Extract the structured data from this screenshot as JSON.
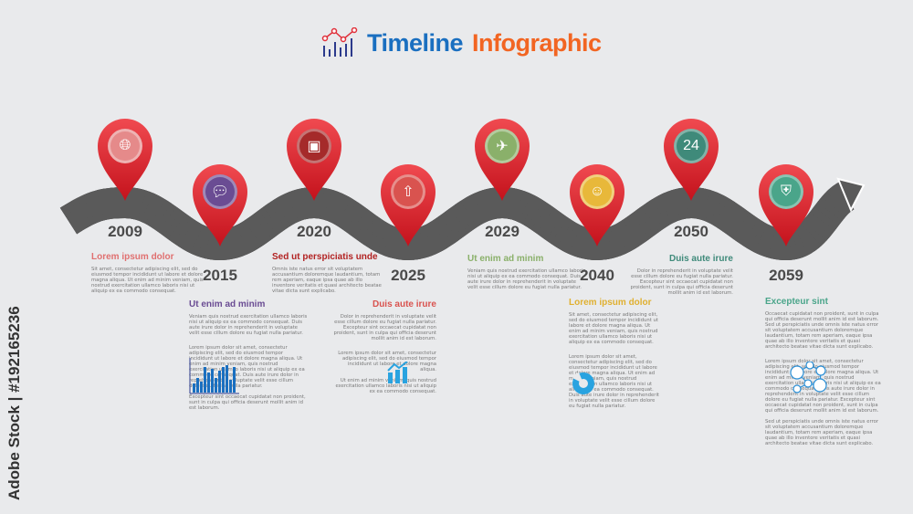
{
  "title": {
    "part1": "Timeline",
    "part2": "Infographic",
    "color1": "#1a6fc0",
    "color2": "#f26522"
  },
  "watermark": "Adobe Stock | #192165236",
  "pin_color": "#e0303a",
  "road_color": "#5a5a5a",
  "milestones": [
    {
      "year": "2009",
      "position": "top",
      "icon": "globe-icon",
      "icon_color": "#e58a8a",
      "heading": "Lorem ipsum dolor",
      "heading_color": "#e07070",
      "text": "Sit amet, consectetur adipiscing elit, sed do eiusmod tempor incididunt ut labore et dolore magna aliqua. Ut enim ad minim veniam, quis nostrud exercitation ullamco laboris nisi ut aliquip ex ea commodo consequat."
    },
    {
      "year": "2015",
      "position": "bottom",
      "icon": "chat-bubbles-icon",
      "icon_color": "#6a4c93",
      "heading": "Ut enim ad minim",
      "heading_color": "#6a4c93",
      "text": "Veniam quis nostrud exercitation ullamco laboris nisi ut aliquip ex ea commodo consequat. Duis aute irure dolor in reprehenderit in voluptate velit esse cillum dolore eu fugiat nulla pariatur.",
      "extra1": "Lorem ipsum dolor sit amet, consectetur adipiscing elit, sed do eiusmod tempor incididunt ut labore et dolore magna aliqua. Ut enim ad minim veniam, quis nostrud exercitation ullamco laboris nisi ut aliquip ex ea commodo consequat. Duis aute irure dolor in reprehenderit in voluptate velit esse cillum dolore eu fugiat nulla pariatur.",
      "extra2": "Excepteur sint occaecat cupidatat non proident, sunt in culpa qui officia deserunt mollit anim id est laborum."
    },
    {
      "year": "2020",
      "position": "top",
      "icon": "cpu-chip-icon",
      "icon_color": "#a52a2a",
      "heading": "Sed ut perspiciatis unde",
      "heading_color": "#b22222",
      "text": "Omnis iste natus error sit voluptatem accusantium doloremque laudantium, totam rem aperiam, eaque ipsa quae ab illo inventore veritatis et quasi architecto beatae vitae dicta sunt explicabo."
    },
    {
      "year": "2025",
      "position": "bottom",
      "icon": "cloud-upload-icon",
      "icon_color": "#d9534f",
      "heading": "Duis aute irure",
      "heading_color": "#d9534f",
      "text": "Dolor in reprehenderit in voluptate velit esse cillum dolore eu fugiat nulla pariatur. Excepteur sint occaecat cupidatat non proident, sunt in culpa qui officia deserunt mollit anim id est laborum.",
      "extra1": "Lorem ipsum dolor sit amet, consectetur adipiscing elit, sed do eiusmod tempor incididunt ut labore et dolore magna aliqua.",
      "extra2": "Ut enim ad minim veniam, quis nostrud exercitation ullamco laboris nisi ut aliquip ex ea commodo consequat."
    },
    {
      "year": "2029",
      "position": "top",
      "icon": "airplane-icon",
      "icon_color": "#8ab06a",
      "heading": "Ut enim ad minim",
      "heading_color": "#8ab06a",
      "text": "Veniam quis nostrud exercitation ullamco laboris nisi ut aliquip ex ea commodo consequat. Duis aute irure dolor in reprehenderit in voluptate velit esse cillum dolore eu fugiat nulla pariatur."
    },
    {
      "year": "2040",
      "position": "bottom",
      "icon": "support-agent-icon",
      "icon_color": "#e8b83a",
      "heading": "Lorem ipsum dolor",
      "heading_color": "#e0b030",
      "text": "Sit amet, consectetur adipiscing elit, sed do eiusmod tempor incididunt ut labore et dolore magna aliqua. Ut enim ad minim veniam, quis nostrud exercitation ullamco laboris nisi ut aliquip ex ea commodo consequat.",
      "extra1": "Lorem ipsum dolor sit amet, consectetur adipiscing elit, sed do eiusmod tempor incididunt ut labore et dolore magna aliqua. Ut enim ad minim veniam, quis nostrud exercitation ullamco laboris nisi ut aliquip ex ea commodo consequat. Duis aute irure dolor in reprehenderit in voluptate velit esse cillum dolore eu fugiat nulla pariatur."
    },
    {
      "year": "2050",
      "position": "top",
      "icon": "24h-phone-icon",
      "icon_color": "#3f8a7a",
      "heading": "Duis aute irure",
      "heading_color": "#3f8a7a",
      "text": "Dolor in reprehenderit in voluptate velit esse cillum dolore eu fugiat nulla pariatur. Excepteur sint occaecat cupidatat non proident, sunt in culpa qui officia deserunt mollit anim id est laborum."
    },
    {
      "year": "2059",
      "position": "bottom",
      "icon": "shield-box-icon",
      "icon_color": "#4aa58a",
      "heading": "Excepteur sint",
      "heading_color": "#4aa58a",
      "text": "Occaecat cupidatat non proident, sunt in culpa qui officia deserunt mollit anim id est laborum. Sed ut perspiciatis unde omnis iste natus error sit voluptatem accusantium doloremque laudantium, totam rem aperiam, eaque ipsa quae ab illo inventore veritatis et quasi architecto beatae vitae dicta sunt explicabo.",
      "extra1": "Lorem ipsum dolor sit amet, consectetur adipiscing elit, sed do eiusmod tempor incididunt ut labore et dolore magna aliqua. Ut enim ad minim veniam, quis nostrud exercitation ullamco laboris nisi ut aliquip ex ea commodo consequat. Duis aute irure dolor in reprehenderit in voluptate velit esse cillum dolore eu fugiat nulla pariatur. Excepteur sint occaecat cupidatat non proident, sunt in culpa qui officia deserunt mollit anim id est laborum.",
      "extra2": "Sed ut perspiciatis unde omnis iste natus error sit voluptatem accusantium doloremque laudantium, totam rem aperiam, eaque ipsa quae ab illo inventore veritatis et quasi architecto beatae vitae dicta sunt explicabo."
    }
  ]
}
